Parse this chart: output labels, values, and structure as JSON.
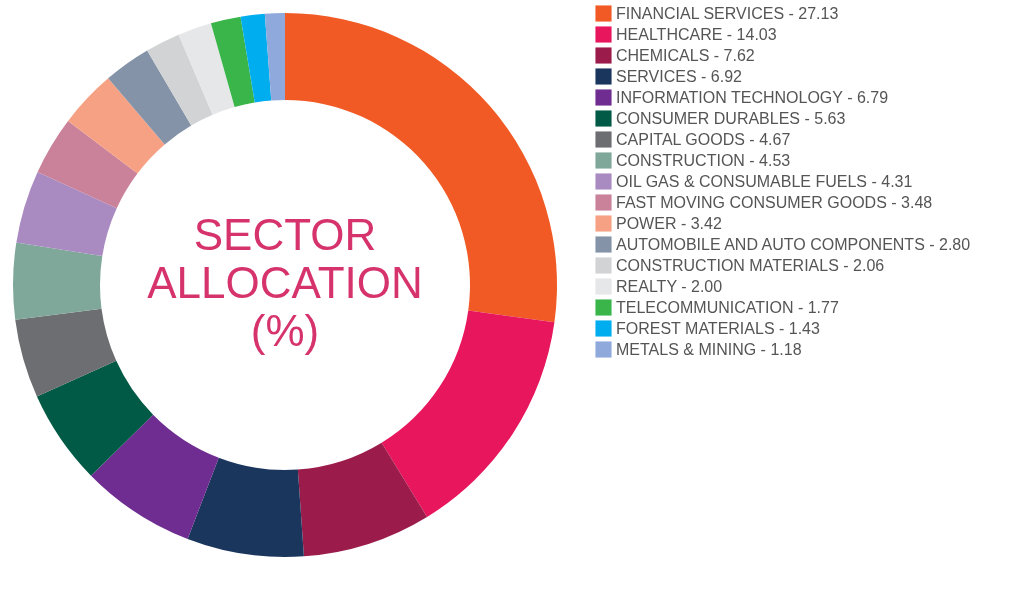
{
  "chart_data": {
    "type": "donut",
    "title": "SECTOR ALLOCATION (%)",
    "legend": "right",
    "categories": [
      "FINANCIAL SERVICES",
      "HEALTHCARE",
      "CHEMICALS",
      "SERVICES",
      "INFORMATION TECHNOLOGY",
      "CONSUMER DURABLES",
      "CAPITAL GOODS",
      "CONSTRUCTION",
      "OIL GAS & CONSUMABLE FUELS",
      "FAST MOVING CONSUMER GOODS",
      "POWER",
      "AUTOMOBILE AND AUTO COMPONENTS",
      "CONSTRUCTION MATERIALS",
      "REALTY",
      "TELECOMMUNICATION",
      "FOREST MATERIALS",
      "METALS & MINING"
    ],
    "values": [
      27.13,
      14.03,
      7.62,
      6.92,
      6.79,
      5.63,
      4.67,
      4.53,
      4.31,
      3.48,
      3.42,
      2.8,
      2.06,
      2.0,
      1.77,
      1.43,
      1.18
    ],
    "value_labels": [
      "27.13",
      "14.03",
      "7.62",
      "6.92",
      "6.79",
      "5.63",
      "4.67",
      "4.53",
      "4.31",
      "3.48",
      "3.42",
      "2.80",
      "2.06",
      "2.00",
      "1.77",
      "1.43",
      "1.18"
    ],
    "colors": [
      "#f15a24",
      "#e8175d",
      "#9b1b4b",
      "#1b365d",
      "#6f2c91",
      "#005a46",
      "#6d6e71",
      "#7fa89a",
      "#a98bc2",
      "#c9829a",
      "#f7a184",
      "#8493a8",
      "#d1d3d4",
      "#e6e7e8",
      "#39b54a",
      "#00aeef",
      "#8fa9dc"
    ]
  }
}
